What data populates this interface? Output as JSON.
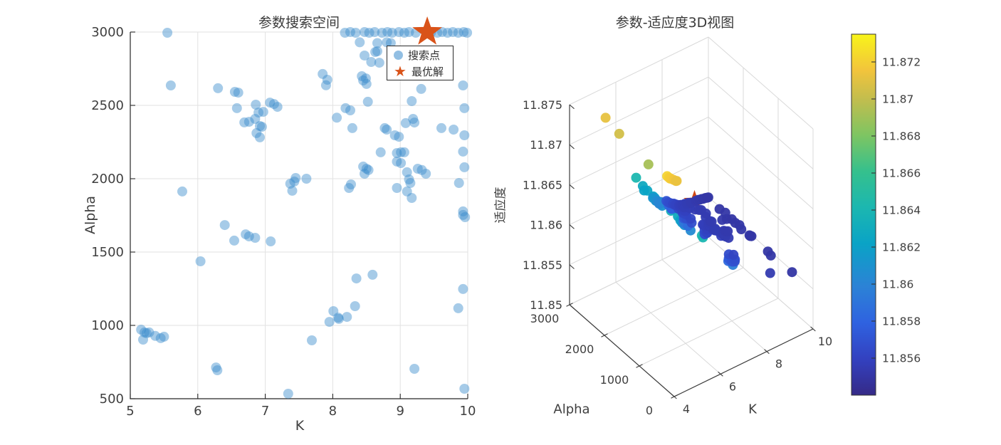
{
  "figure": {
    "background": "#ffffff"
  },
  "chart_data": [
    {
      "type": "scatter",
      "title": "参数搜索空间",
      "xlabel": "K",
      "ylabel": "Alpha",
      "xlim": [
        5,
        10
      ],
      "ylim": [
        500,
        3000
      ],
      "xticks": [
        5,
        6,
        7,
        8,
        9,
        10
      ],
      "yticks": [
        500,
        1000,
        1500,
        2000,
        2500,
        3000
      ],
      "grid": true,
      "marker": {
        "color": "#398BCC",
        "opacity": 0.45,
        "radius": 7
      },
      "legend": {
        "position": "upper-right-inside",
        "items": [
          {
            "label": "搜索点",
            "marker": "circle",
            "color": "#398BCC"
          },
          {
            "label": "最优解",
            "marker": "star",
            "color": "#D95319"
          }
        ]
      },
      "best_point": {
        "K": 9.4,
        "Alpha": 3000
      },
      "points_note": "each point = [K, Alpha, fitness(适应度)] shared with 3D view",
      "points": [
        [
          8.18,
          2995,
          11.8571
        ],
        [
          8.26,
          3000,
          11.8568
        ],
        [
          8.34,
          2995,
          11.8566
        ],
        [
          8.47,
          3000,
          11.8563
        ],
        [
          8.54,
          2995,
          11.8561
        ],
        [
          8.62,
          3000,
          11.856
        ],
        [
          8.73,
          2995,
          11.8558
        ],
        [
          8.81,
          3000,
          11.8557
        ],
        [
          8.88,
          2995,
          11.8556
        ],
        [
          8.98,
          3000,
          11.8556
        ],
        [
          9.06,
          2995,
          11.8555
        ],
        [
          9.13,
          3000,
          11.8555
        ],
        [
          9.23,
          2995,
          11.8554
        ],
        [
          9.46,
          3000,
          11.8553
        ],
        [
          9.55,
          2995,
          11.8553
        ],
        [
          9.62,
          3000,
          11.8552
        ],
        [
          9.7,
          2995,
          11.8552
        ],
        [
          9.78,
          3000,
          11.8551
        ],
        [
          9.86,
          2995,
          11.8551
        ],
        [
          9.94,
          3000,
          11.855
        ],
        [
          9.99,
          2995,
          11.855
        ],
        [
          8.4,
          2930,
          11.8567
        ],
        [
          8.66,
          2925,
          11.8559
        ],
        [
          8.8,
          2930,
          11.8557
        ],
        [
          8.86,
          2925,
          11.8556
        ],
        [
          8.98,
          2855,
          11.8556
        ],
        [
          9.11,
          2790,
          11.8555
        ],
        [
          9.23,
          2757,
          11.8554
        ],
        [
          9.29,
          2733,
          11.8554
        ],
        [
          8.47,
          2840,
          11.8563
        ],
        [
          8.63,
          2864,
          11.856
        ],
        [
          8.66,
          2869,
          11.8559
        ],
        [
          8.57,
          2796,
          11.8561
        ],
        [
          8.69,
          2791,
          11.8559
        ],
        [
          8.43,
          2699,
          11.8564
        ],
        [
          8.49,
          2684,
          11.8563
        ],
        [
          7.92,
          2675,
          11.8577
        ],
        [
          5.55,
          2995,
          11.8712
        ],
        [
          5.6,
          2636,
          11.8705
        ],
        [
          6.3,
          2617,
          11.8641
        ],
        [
          6.55,
          2592,
          11.8628
        ],
        [
          6.6,
          2587,
          11.8622
        ],
        [
          6.86,
          2505,
          11.8612
        ],
        [
          7.07,
          2519,
          11.8605
        ],
        [
          7.13,
          2509,
          11.8601
        ],
        [
          7.18,
          2490,
          11.8603
        ],
        [
          6.58,
          2481,
          11.8626
        ],
        [
          6.9,
          2451,
          11.861
        ],
        [
          6.97,
          2456,
          11.8608
        ],
        [
          6.76,
          2388,
          11.8618
        ],
        [
          6.85,
          2408,
          11.8613
        ],
        [
          6.69,
          2384,
          11.8621
        ],
        [
          6.92,
          2359,
          11.8611
        ],
        [
          6.95,
          2354,
          11.8609
        ],
        [
          6.87,
          2311,
          11.8612
        ],
        [
          6.92,
          2282,
          11.861
        ],
        [
          5.77,
          1913,
          11.8692
        ],
        [
          7.45,
          2005,
          11.8594
        ],
        [
          7.43,
          1981,
          11.8592
        ],
        [
          7.4,
          1918,
          11.8595
        ],
        [
          7.61,
          2000,
          11.8586
        ],
        [
          7.37,
          1966,
          11.8596
        ],
        [
          7.85,
          2714,
          11.8581
        ],
        [
          7.9,
          2637,
          11.8579
        ],
        [
          8.45,
          2670,
          11.8564
        ],
        [
          8.5,
          2646,
          11.8563
        ],
        [
          8.52,
          2525,
          11.8562
        ],
        [
          8.19,
          2481,
          11.857
        ],
        [
          8.26,
          2466,
          11.8568
        ],
        [
          8.06,
          2416,
          11.8573
        ],
        [
          8.29,
          2345,
          11.8567
        ],
        [
          8.77,
          2345,
          11.8558
        ],
        [
          8.8,
          2335,
          11.8557
        ],
        [
          8.92,
          2296,
          11.8556
        ],
        [
          8.98,
          2286,
          11.8556
        ],
        [
          9.08,
          2379,
          11.8555
        ],
        [
          9.19,
          2408,
          11.8554
        ],
        [
          9.21,
          2383,
          11.8554
        ],
        [
          9.17,
          2529,
          11.8555
        ],
        [
          9.31,
          2612,
          11.8554
        ],
        [
          9.61,
          2345,
          11.8552
        ],
        [
          9.79,
          2335,
          11.8551
        ],
        [
          9.93,
          2636,
          11.855
        ],
        [
          9.95,
          2481,
          11.8551
        ],
        [
          9.93,
          2185,
          11.855
        ],
        [
          9.95,
          2078,
          11.8551
        ],
        [
          9.95,
          2296,
          11.855
        ],
        [
          8.71,
          2180,
          11.8559
        ],
        [
          8.95,
          2175,
          11.8556
        ],
        [
          9.01,
          2180,
          11.8555
        ],
        [
          9.06,
          2180,
          11.8555
        ],
        [
          8.95,
          2117,
          11.8557
        ],
        [
          9.01,
          2107,
          11.8556
        ],
        [
          8.45,
          2083,
          11.8565
        ],
        [
          8.5,
          2068,
          11.8563
        ],
        [
          8.53,
          2059,
          11.8562
        ],
        [
          8.47,
          2034,
          11.8564
        ],
        [
          9.26,
          2068,
          11.8554
        ],
        [
          9.32,
          2059,
          11.8553
        ],
        [
          9.38,
          2034,
          11.8553
        ],
        [
          9.1,
          2044,
          11.8555
        ],
        [
          9.13,
          1995,
          11.8554
        ],
        [
          9.15,
          1971,
          11.8554
        ],
        [
          8.27,
          1961,
          11.8568
        ],
        [
          8.24,
          1937,
          11.8569
        ],
        [
          8.95,
          1937,
          11.8557
        ],
        [
          9.1,
          1913,
          11.8555
        ],
        [
          9.17,
          1869,
          11.8554
        ],
        [
          9.87,
          1971,
          11.8551
        ],
        [
          9.93,
          1777,
          11.855
        ],
        [
          6.4,
          1684,
          11.8634
        ],
        [
          6.54,
          1578,
          11.8629
        ],
        [
          6.71,
          1621,
          11.862
        ],
        [
          6.76,
          1607,
          11.8617
        ],
        [
          6.85,
          1597,
          11.8613
        ],
        [
          7.08,
          1573,
          11.8604
        ],
        [
          6.04,
          1437,
          11.8655
        ],
        [
          5.16,
          971,
          11.8722
        ],
        [
          5.21,
          952,
          11.872
        ],
        [
          5.24,
          947,
          11.8719
        ],
        [
          5.28,
          952,
          11.8718
        ],
        [
          5.19,
          903,
          11.8721
        ],
        [
          5.37,
          928,
          11.8716
        ],
        [
          5.45,
          913,
          11.8714
        ],
        [
          5.5,
          923,
          11.8713
        ],
        [
          6.27,
          713,
          11.8642
        ],
        [
          6.29,
          694,
          11.864
        ],
        [
          7.34,
          534,
          11.8597
        ],
        [
          9.93,
          1753,
          11.855
        ],
        [
          9.96,
          1738,
          11.855
        ],
        [
          8.59,
          1345,
          11.8561
        ],
        [
          8.35,
          1320,
          11.8566
        ],
        [
          9.93,
          1248,
          11.855
        ],
        [
          9.86,
          1117,
          11.8551
        ],
        [
          8.33,
          1131,
          11.8567
        ],
        [
          8.01,
          1097,
          11.8574
        ],
        [
          8.08,
          1053,
          11.8572
        ],
        [
          8.09,
          1044,
          11.8571
        ],
        [
          8.21,
          1058,
          11.8569
        ],
        [
          7.95,
          1024,
          11.8576
        ],
        [
          7.69,
          898,
          11.8583
        ],
        [
          9.21,
          704,
          11.8554
        ],
        [
          9.95,
          568,
          11.855
        ]
      ]
    },
    {
      "type": "scatter3d",
      "title": "参数-适应度3D视图",
      "xlabel": "K",
      "ylabel": "Alpha",
      "zlabel": "适应度",
      "xlim": [
        4,
        10
      ],
      "ylim": [
        0,
        3000
      ],
      "zlim": [
        11.85,
        11.875
      ],
      "xticks": [
        4,
        6,
        8,
        10
      ],
      "yticks": [
        0,
        1000,
        2000,
        3000
      ],
      "zticks": [
        11.85,
        11.855,
        11.86,
        11.865,
        11.87,
        11.875
      ],
      "grid": true,
      "points_ref": 0,
      "best_point": {
        "K": 9.4,
        "Alpha": 3000,
        "fitness": 11.8553
      },
      "best_color": "#D04914",
      "colorbar": {
        "min": 11.854,
        "max": 11.8735,
        "ticks": [
          11.856,
          11.858,
          11.86,
          11.862,
          11.864,
          11.866,
          11.868,
          11.87,
          11.872
        ]
      },
      "colormap": "parula",
      "colormap_stops": [
        [
          0,
          "#352a87"
        ],
        [
          0.1,
          "#3341c0"
        ],
        [
          0.2,
          "#2f62e0"
        ],
        [
          0.3,
          "#2c82d6"
        ],
        [
          0.42,
          "#0aa3c6"
        ],
        [
          0.52,
          "#1cb7b0"
        ],
        [
          0.62,
          "#35c08d"
        ],
        [
          0.72,
          "#7ec562"
        ],
        [
          0.82,
          "#c2bd4e"
        ],
        [
          0.9,
          "#f2c43c"
        ],
        [
          1,
          "#f8f41a"
        ]
      ]
    }
  ]
}
